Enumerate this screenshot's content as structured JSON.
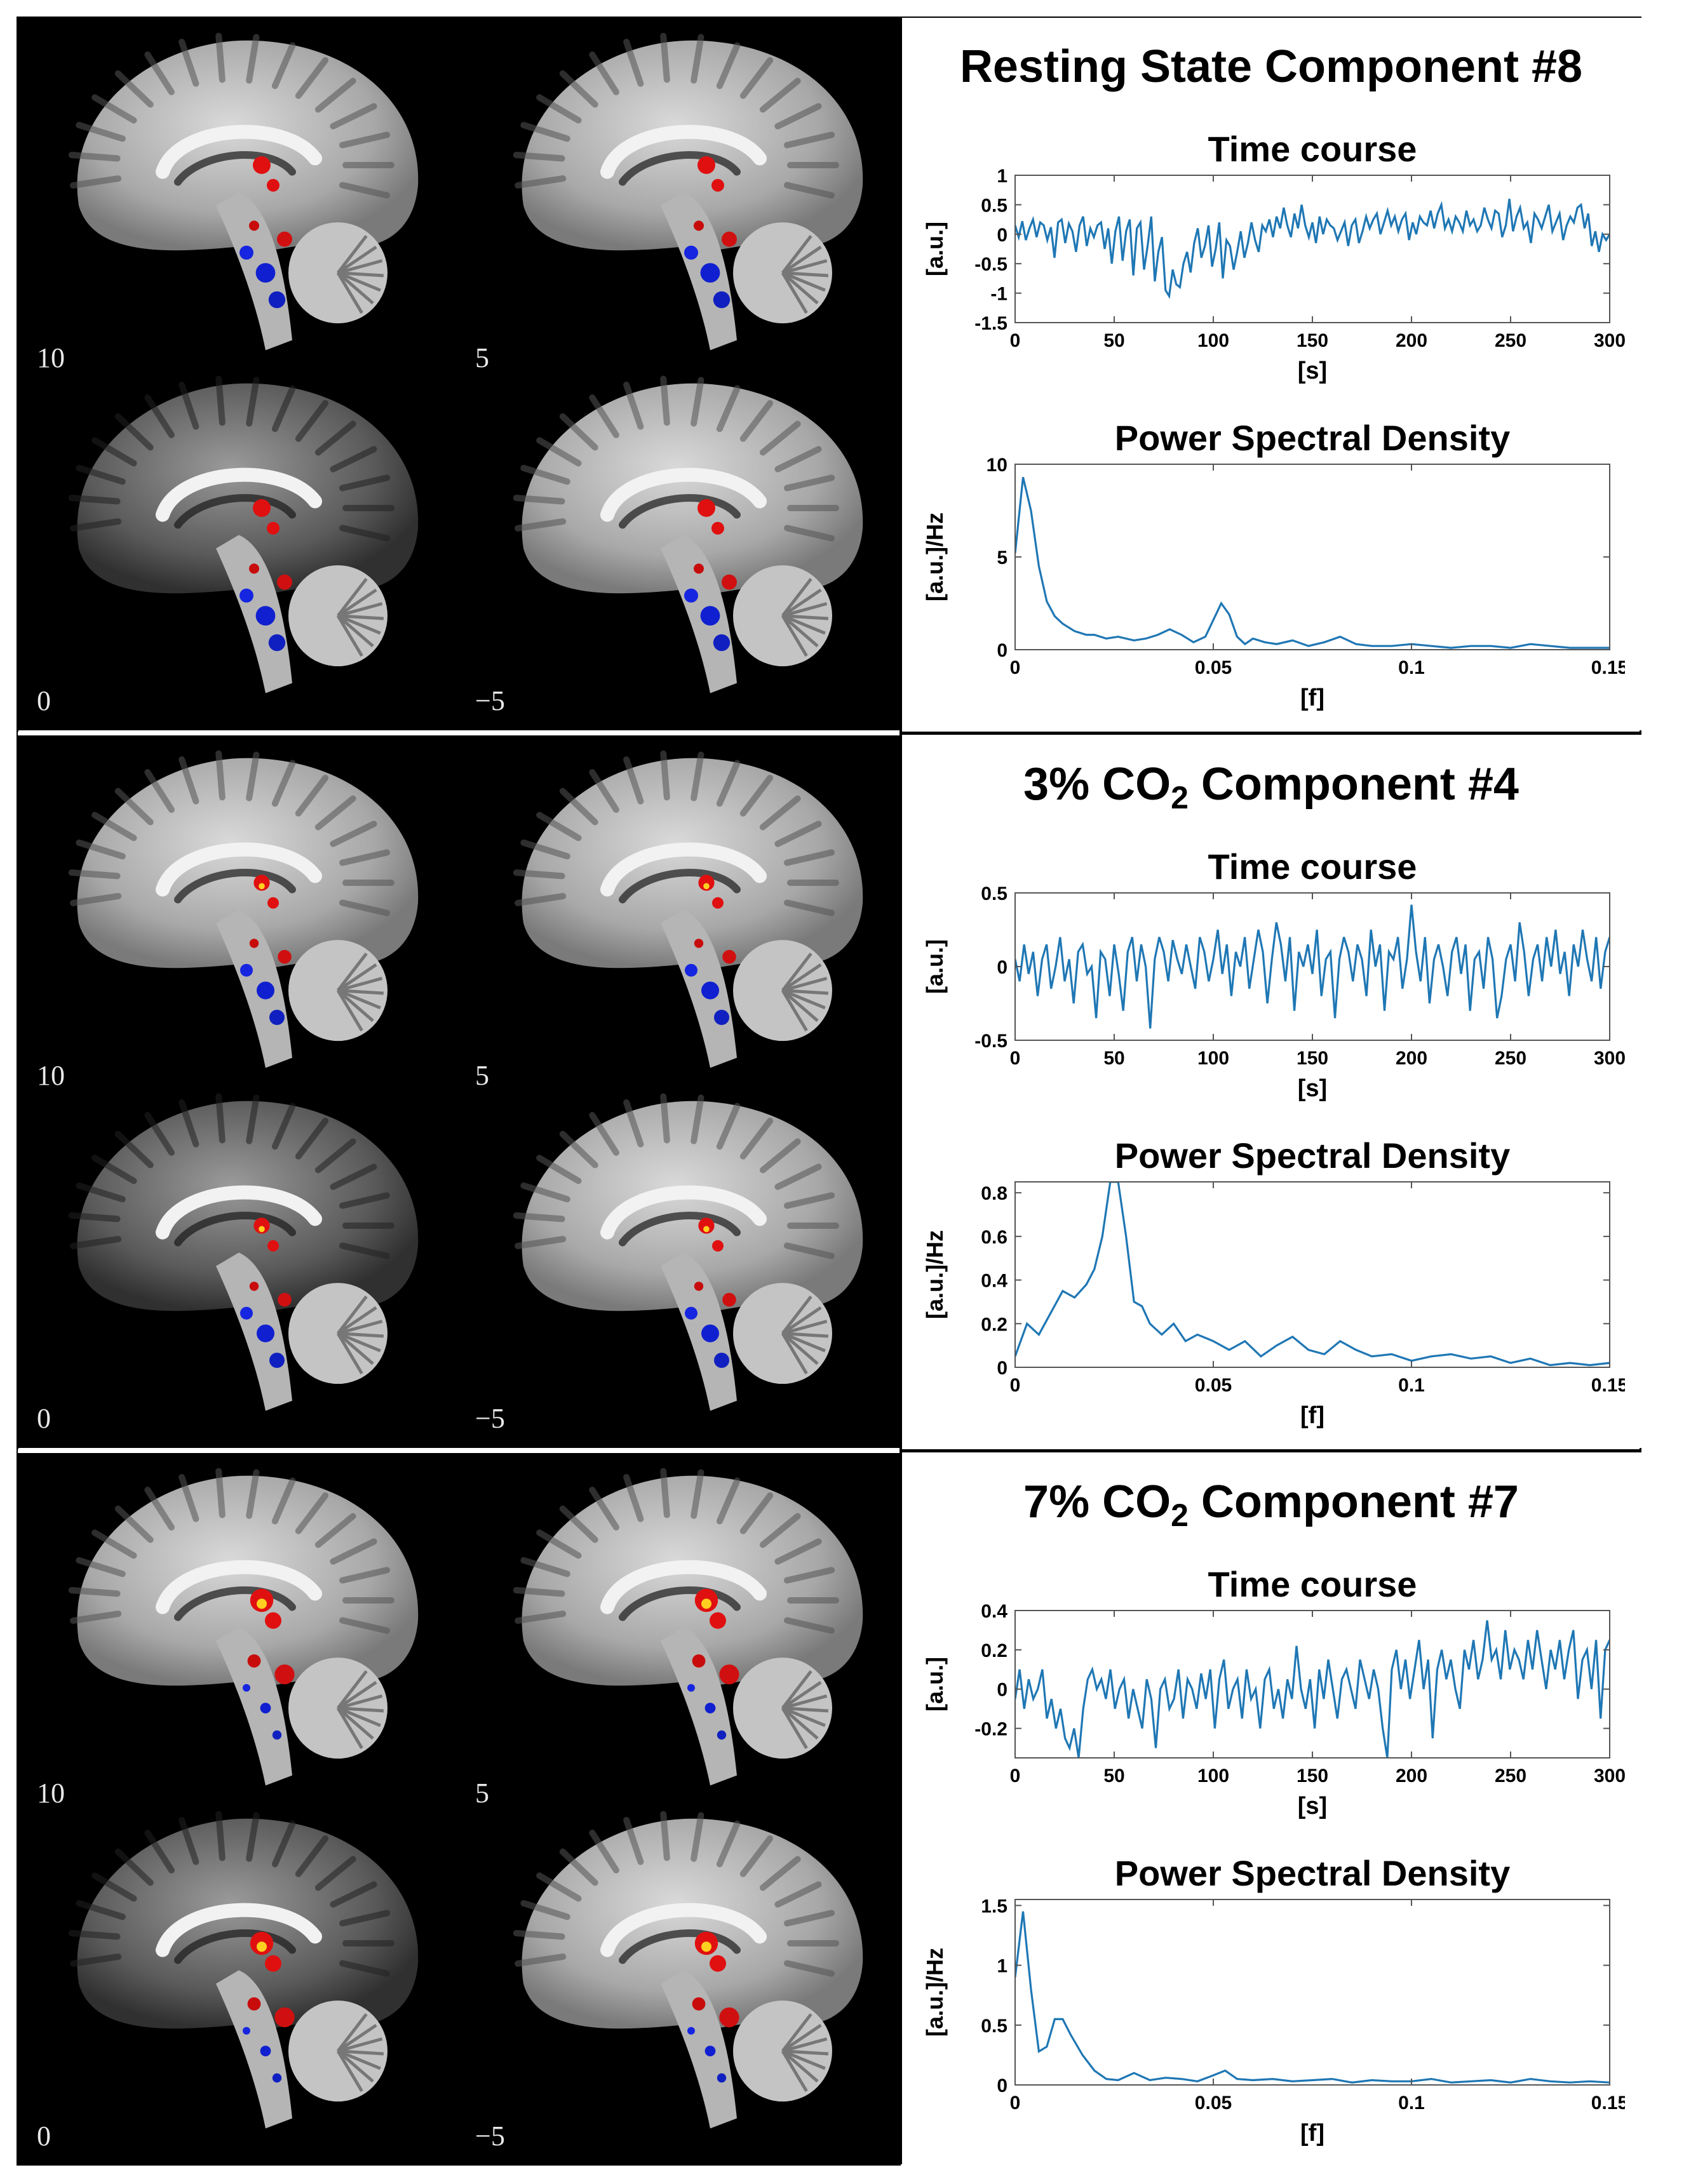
{
  "rows": [
    {
      "title": "Resting State Component #8",
      "title_sub": "",
      "title_after": "",
      "slice_labels": [
        "10",
        "5",
        "0",
        "−5"
      ],
      "activation": {
        "red": 1.0,
        "blue": 1.1,
        "yellow": 0.0
      }
    },
    {
      "title": "3% CO",
      "title_sub": "2",
      "title_after": " Component #4",
      "slice_labels": [
        "10",
        "5",
        "0",
        "−5"
      ],
      "activation": {
        "red": 0.9,
        "blue": 1.0,
        "yellow": 0.6
      }
    },
    {
      "title": "7% CO",
      "title_sub": "2",
      "title_after": " Component #7",
      "slice_labels": [
        "10",
        "5",
        "0",
        "−5"
      ],
      "activation": {
        "red": 1.3,
        "blue": 0.6,
        "yellow": 1.0
      }
    }
  ],
  "chart_data": [
    {
      "id": "rs-time",
      "type": "line",
      "title": "Time course",
      "xlabel": "[s]",
      "ylabel": "[a.u.]",
      "xlim": [
        0,
        300
      ],
      "ylim": [
        -1.5,
        1
      ],
      "xticks": [
        0,
        50,
        100,
        150,
        200,
        250,
        300
      ],
      "yticks": [
        1,
        0.5,
        0,
        -0.5,
        -1,
        -1.5
      ],
      "line_color": "#1f77b4",
      "series": [
        {
          "values": [
            0.15,
            -0.05,
            0.22,
            -0.1,
            0.1,
            0.25,
            -0.05,
            0.2,
            0.15,
            -0.1,
            0.12,
            -0.4,
            0.2,
            0.25,
            -0.15,
            0.18,
            0.05,
            -0.3,
            0.15,
            0.3,
            -0.2,
            0.1,
            -0.05,
            0.15,
            0.2,
            -0.25,
            0.1,
            -0.5,
            0.05,
            0.3,
            -0.45,
            0.05,
            0.25,
            -0.7,
            0.1,
            0.2,
            -0.6,
            -0.2,
            0.3,
            -0.8,
            -0.3,
            -0.05,
            -0.95,
            -1.05,
            -0.6,
            -0.85,
            -0.9,
            -0.5,
            -0.3,
            -0.65,
            -0.15,
            0.1,
            -0.4,
            -0.2,
            0.15,
            -0.55,
            -0.25,
            0.2,
            -0.75,
            -0.1,
            -0.2,
            -0.6,
            -0.3,
            0.05,
            -0.4,
            -0.15,
            0.2,
            -0.1,
            -0.3,
            0.15,
            0.05,
            0.25,
            -0.05,
            0.3,
            0.1,
            0.45,
            0.15,
            -0.05,
            0.35,
            0.1,
            0.5,
            0.15,
            -0.05,
            0.2,
            -0.15,
            0.3,
            0.0,
            0.25,
            0.15,
            0.1,
            -0.1,
            0.05,
            0.2,
            -0.2,
            0.15,
            0.25,
            -0.15,
            0.05,
            0.3,
            0.1,
            0.25,
            0.35,
            0.0,
            0.2,
            0.4,
            0.15,
            0.3,
            0.05,
            0.25,
            0.35,
            -0.1,
            0.2,
            0.0,
            0.3,
            0.2,
            0.15,
            0.4,
            0.1,
            0.35,
            0.5,
            0.1,
            0.25,
            0.05,
            0.3,
            0.2,
            0.05,
            0.4,
            0.15,
            0.25,
            0.05,
            0.15,
            0.45,
            0.25,
            0.1,
            0.4,
            0.35,
            -0.05,
            0.15,
            0.6,
            0.05,
            0.3,
            0.45,
            0.1,
            0.2,
            -0.15,
            0.35,
            0.25,
            0.1,
            0.3,
            0.5,
            0.05,
            0.2,
            0.35,
            -0.1,
            0.15,
            0.3,
            0.2,
            0.45,
            0.5,
            0.1,
            0.35,
            -0.2,
            0.05,
            -0.3,
            0.0,
            -0.1,
            0.0
          ]
        }
      ]
    },
    {
      "id": "rs-psd",
      "type": "line",
      "title": "Power Spectral Density",
      "xlabel": "[f]",
      "ylabel": "[a.u.]/Hz",
      "xlim": [
        0,
        0.15
      ],
      "ylim": [
        0,
        10
      ],
      "xticks": [
        0,
        0.05,
        0.1,
        0.15
      ],
      "yticks": [
        10,
        5,
        0
      ],
      "line_color": "#1f77b4",
      "series": [
        {
          "x": [
            0,
            0.002,
            0.004,
            0.006,
            0.008,
            0.01,
            0.012,
            0.015,
            0.018,
            0.02,
            0.023,
            0.026,
            0.03,
            0.033,
            0.036,
            0.039,
            0.042,
            0.045,
            0.048,
            0.05,
            0.052,
            0.054,
            0.056,
            0.058,
            0.06,
            0.063,
            0.066,
            0.07,
            0.074,
            0.078,
            0.082,
            0.086,
            0.09,
            0.095,
            0.1,
            0.105,
            0.11,
            0.115,
            0.12,
            0.125,
            0.13,
            0.135,
            0.14,
            0.145,
            0.15
          ],
          "values": [
            5.2,
            9.3,
            7.5,
            4.5,
            2.6,
            1.8,
            1.4,
            1.0,
            0.8,
            0.8,
            0.6,
            0.7,
            0.5,
            0.6,
            0.8,
            1.1,
            0.8,
            0.4,
            0.7,
            1.6,
            2.5,
            1.9,
            0.7,
            0.3,
            0.6,
            0.4,
            0.3,
            0.5,
            0.2,
            0.4,
            0.7,
            0.3,
            0.2,
            0.2,
            0.3,
            0.2,
            0.1,
            0.2,
            0.2,
            0.1,
            0.3,
            0.2,
            0.1,
            0.1,
            0.1
          ]
        }
      ]
    },
    {
      "id": "co3-time",
      "type": "line",
      "title": "Time course",
      "xlabel": "[s]",
      "ylabel": "[a.u.]",
      "xlim": [
        0,
        300
      ],
      "ylim": [
        -0.5,
        0.5
      ],
      "xticks": [
        0,
        50,
        100,
        150,
        200,
        250,
        300
      ],
      "yticks": [
        0.5,
        0,
        -0.5
      ],
      "line_color": "#1f77b4",
      "series": [
        {
          "values": [
            0.05,
            -0.1,
            0.15,
            -0.05,
            0.1,
            -0.2,
            0.05,
            0.15,
            -0.15,
            0.0,
            0.2,
            -0.1,
            0.05,
            -0.25,
            0.1,
            0.15,
            -0.05,
            0.0,
            -0.35,
            0.1,
            0.05,
            -0.2,
            0.15,
            -0.05,
            -0.3,
            0.1,
            0.2,
            -0.1,
            0.15,
            0.0,
            -0.42,
            0.05,
            0.2,
            0.1,
            -0.1,
            0.18,
            0.05,
            -0.05,
            0.15,
            0.0,
            -0.15,
            0.2,
            0.1,
            -0.1,
            0.05,
            0.25,
            -0.05,
            0.15,
            -0.2,
            0.1,
            0.0,
            0.2,
            -0.15,
            0.05,
            0.25,
            0.1,
            -0.25,
            0.05,
            0.3,
            0.15,
            -0.1,
            0.2,
            -0.3,
            0.1,
            0.0,
            0.15,
            -0.05,
            0.25,
            -0.2,
            0.05,
            0.1,
            -0.35,
            0.05,
            0.2,
            0.1,
            -0.1,
            0.15,
            0.05,
            -0.2,
            0.25,
            0.0,
            0.15,
            -0.3,
            0.1,
            0.05,
            0.2,
            -0.15,
            0.05,
            0.42,
            0.1,
            -0.1,
            0.2,
            -0.25,
            0.05,
            0.15,
            0.0,
            -0.2,
            0.1,
            0.2,
            -0.05,
            0.15,
            -0.3,
            0.05,
            0.1,
            -0.15,
            0.2,
            0.05,
            -0.35,
            -0.2,
            0.05,
            0.15,
            -0.1,
            0.3,
            0.1,
            -0.2,
            0.05,
            0.15,
            -0.1,
            0.2,
            0.0,
            0.25,
            -0.05,
            0.1,
            -0.2,
            0.15,
            0.0,
            0.25,
            0.05,
            -0.1,
            0.2,
            -0.15,
            0.1,
            0.2
          ]
        }
      ]
    },
    {
      "id": "co3-psd",
      "type": "line",
      "title": "Power Spectral Density",
      "xlabel": "[f]",
      "ylabel": "[a.u.]/Hz",
      "xlim": [
        0,
        0.15
      ],
      "ylim": [
        0,
        0.85
      ],
      "xticks": [
        0,
        0.05,
        0.1,
        0.15
      ],
      "yticks": [
        0.8,
        0.6,
        0.4,
        0.2,
        0
      ],
      "line_color": "#1f77b4",
      "series": [
        {
          "x": [
            0,
            0.003,
            0.006,
            0.009,
            0.012,
            0.015,
            0.018,
            0.02,
            0.022,
            0.024,
            0.026,
            0.028,
            0.03,
            0.032,
            0.034,
            0.037,
            0.04,
            0.043,
            0.046,
            0.05,
            0.054,
            0.058,
            0.062,
            0.066,
            0.07,
            0.074,
            0.078,
            0.082,
            0.086,
            0.09,
            0.095,
            0.1,
            0.105,
            0.11,
            0.115,
            0.12,
            0.125,
            0.13,
            0.135,
            0.14,
            0.145,
            0.15
          ],
          "values": [
            0.05,
            0.2,
            0.15,
            0.25,
            0.35,
            0.32,
            0.38,
            0.45,
            0.6,
            0.85,
            0.85,
            0.6,
            0.3,
            0.28,
            0.2,
            0.15,
            0.2,
            0.12,
            0.15,
            0.12,
            0.08,
            0.12,
            0.05,
            0.1,
            0.14,
            0.08,
            0.06,
            0.12,
            0.08,
            0.05,
            0.06,
            0.03,
            0.05,
            0.06,
            0.04,
            0.05,
            0.02,
            0.04,
            0.01,
            0.02,
            0.01,
            0.02
          ]
        }
      ]
    },
    {
      "id": "co7-time",
      "type": "line",
      "title": "Time course",
      "xlabel": "[s]",
      "ylabel": "[a.u.]",
      "xlim": [
        0,
        300
      ],
      "ylim": [
        -0.35,
        0.4
      ],
      "xticks": [
        0,
        50,
        100,
        150,
        200,
        250,
        300
      ],
      "yticks": [
        0.4,
        0.2,
        0,
        -0.2
      ],
      "line_color": "#1f77b4",
      "series": [
        {
          "values": [
            -0.05,
            0.1,
            -0.1,
            0.05,
            -0.05,
            0.0,
            0.1,
            -0.15,
            -0.05,
            -0.2,
            -0.1,
            -0.25,
            -0.3,
            -0.2,
            -0.35,
            -0.1,
            0.05,
            0.1,
            0.0,
            0.05,
            -0.05,
            0.1,
            -0.1,
            0.0,
            0.05,
            -0.15,
            0.0,
            -0.1,
            -0.2,
            0.05,
            -0.05,
            -0.3,
            0.0,
            0.05,
            -0.1,
            -0.05,
            0.1,
            -0.15,
            0.05,
            0.0,
            -0.1,
            0.08,
            -0.05,
            0.1,
            -0.2,
            0.05,
            0.15,
            -0.1,
            0.0,
            0.05,
            -0.15,
            0.1,
            -0.05,
            0.0,
            -0.2,
            0.05,
            0.1,
            -0.1,
            0.0,
            -0.15,
            0.05,
            -0.05,
            0.22,
            0.0,
            -0.1,
            0.05,
            -0.2,
            0.1,
            -0.05,
            0.15,
            0.0,
            -0.15,
            0.05,
            0.1,
            0.0,
            -0.1,
            0.15,
            0.05,
            -0.05,
            0.1,
            0.0,
            -0.2,
            -0.35,
            0.1,
            0.2,
            0.0,
            0.15,
            -0.05,
            0.1,
            0.25,
            0.0,
            0.15,
            -0.25,
            0.1,
            0.2,
            0.05,
            0.15,
            0.0,
            -0.1,
            0.2,
            0.1,
            0.25,
            0.05,
            0.15,
            0.35,
            0.15,
            0.2,
            0.05,
            0.3,
            0.1,
            0.2,
            0.15,
            0.05,
            0.25,
            0.1,
            0.3,
            0.15,
            0.0,
            0.2,
            0.1,
            0.25,
            0.05,
            0.2,
            0.3,
            -0.05,
            0.15,
            0.2,
            0.0,
            0.25,
            -0.15,
            0.2,
            0.25
          ]
        }
      ]
    },
    {
      "id": "co7-psd",
      "type": "line",
      "title": "Power Spectral Density",
      "xlabel": "[f]",
      "ylabel": "[a.u.]/Hz",
      "xlim": [
        0,
        0.15
      ],
      "ylim": [
        0,
        1.55
      ],
      "xticks": [
        0,
        0.05,
        0.1,
        0.15
      ],
      "yticks": [
        1.5,
        1,
        0.5,
        0
      ],
      "line_color": "#1f77b4",
      "series": [
        {
          "x": [
            0,
            0.002,
            0.004,
            0.006,
            0.008,
            0.01,
            0.012,
            0.014,
            0.017,
            0.02,
            0.023,
            0.026,
            0.03,
            0.034,
            0.038,
            0.042,
            0.046,
            0.05,
            0.053,
            0.056,
            0.06,
            0.065,
            0.07,
            0.075,
            0.08,
            0.085,
            0.09,
            0.095,
            0.1,
            0.105,
            0.11,
            0.115,
            0.12,
            0.125,
            0.13,
            0.135,
            0.14,
            0.145,
            0.15
          ],
          "values": [
            0.9,
            1.45,
            0.8,
            0.28,
            0.32,
            0.55,
            0.55,
            0.42,
            0.25,
            0.12,
            0.05,
            0.04,
            0.1,
            0.04,
            0.06,
            0.05,
            0.03,
            0.08,
            0.12,
            0.05,
            0.04,
            0.05,
            0.03,
            0.04,
            0.05,
            0.02,
            0.04,
            0.03,
            0.03,
            0.05,
            0.02,
            0.03,
            0.04,
            0.02,
            0.05,
            0.03,
            0.02,
            0.03,
            0.02
          ]
        }
      ]
    }
  ]
}
